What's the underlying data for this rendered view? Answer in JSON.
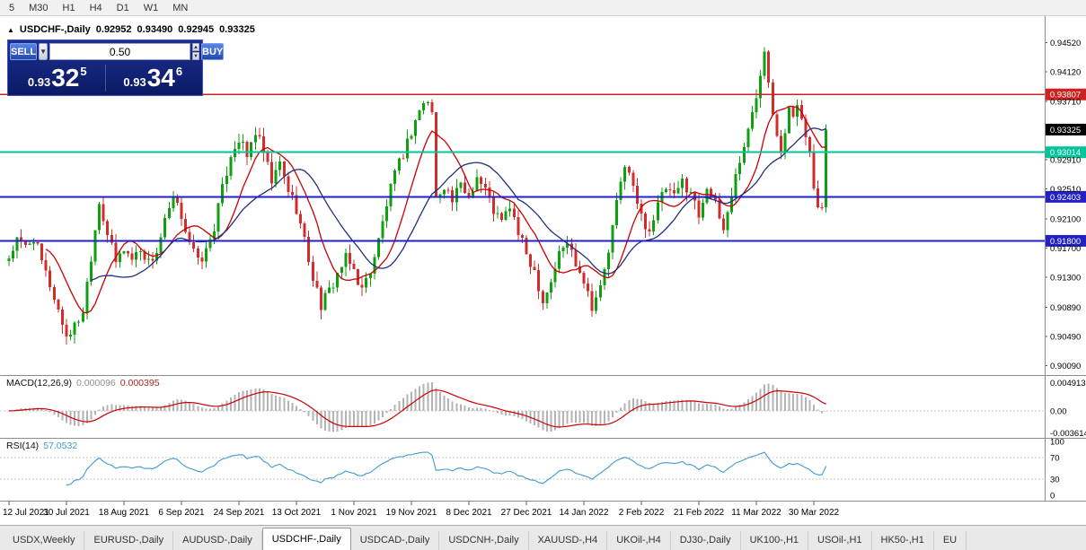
{
  "toolbar": {
    "timeframes": [
      "5",
      "M30",
      "H1",
      "H4",
      "D1",
      "W1",
      "MN"
    ]
  },
  "chart_header": {
    "marker": "▲",
    "title": "USDCHF-,Daily",
    "open": "0.92952",
    "high": "0.93490",
    "low": "0.92945",
    "close": "0.93325"
  },
  "trade_panel": {
    "sell_label": "SELL",
    "buy_label": "BUY",
    "volume": "0.50",
    "sell_price": {
      "prefix": "0.93",
      "big": "32",
      "sup": "5"
    },
    "buy_price": {
      "prefix": "0.93",
      "big": "34",
      "sup": "6"
    }
  },
  "macd_panel": {
    "name": "MACD(12,26,9)",
    "value_main": "0.000096",
    "value_signal": "0.000395",
    "axis_labels": [
      "0.004913",
      "0.00",
      "-0.003614"
    ]
  },
  "rsi_panel": {
    "name": "RSI(14)",
    "value": "57.0532",
    "axis_labels": [
      "100",
      "70",
      "30",
      "0"
    ],
    "levels": [
      70,
      30
    ]
  },
  "tabs": [
    {
      "label": "USDX,Weekly",
      "active": false
    },
    {
      "label": "EURUSD-,Daily",
      "active": false
    },
    {
      "label": "AUDUSD-,Daily",
      "active": false
    },
    {
      "label": "USDCHF-,Daily",
      "active": true
    },
    {
      "label": "USDCAD-,Daily",
      "active": false
    },
    {
      "label": "USDCNH-,Daily",
      "active": false
    },
    {
      "label": "XAUUSD-,H4",
      "active": false
    },
    {
      "label": "UKOil-,H4",
      "active": false
    },
    {
      "label": "DJ30-,Daily",
      "active": false
    },
    {
      "label": "UK100-,H1",
      "active": false
    },
    {
      "label": "USOil-,H1",
      "active": false
    },
    {
      "label": "HK50-,H1",
      "active": false
    },
    {
      "label": "EU",
      "active": false
    }
  ],
  "colors": {
    "bull": "#0fa00f",
    "bear": "#d22d2d",
    "ma_fast": "#cc0000",
    "ma_slow": "#20307f",
    "macd_hist": "#b3b3b3",
    "macd_signal": "#cc0000",
    "rsi_line": "#3f9bd0",
    "hline_red": "#cc2222",
    "hline_teal": "#00c49a",
    "hline_blue": "#2222c4",
    "bid_box": "#000000",
    "axis_text": "#000000",
    "separator": "#8c8c8c"
  },
  "chart_data": {
    "type": "candlestick",
    "symbol": "USDCHF-",
    "timeframe": "Daily",
    "price_range": {
      "top": 0.9488,
      "bottom": 0.8996
    },
    "price_axis_ticks": [
      "0.94520",
      "0.94120",
      "0.93710",
      "0.92910",
      "0.92510",
      "0.92100",
      "0.91700",
      "0.91300",
      "0.90890",
      "0.90490",
      "0.90090"
    ],
    "hlines": [
      {
        "price": 0.93807,
        "label": "0.93807",
        "color_key": "hline_red",
        "width": 1.5
      },
      {
        "price": 0.93014,
        "label": "0.93014",
        "color_key": "hline_teal",
        "width": 2
      },
      {
        "price": 0.92403,
        "label": "0.92403",
        "color_key": "hline_blue",
        "width": 2
      },
      {
        "price": 0.918,
        "label": "0.91800",
        "color_key": "hline_blue",
        "width": 2
      }
    ],
    "bid": {
      "price": 0.93325,
      "label": "0.93325"
    },
    "x_labels": [
      "12 Jul 2021",
      "30 Jul 2021",
      "18 Aug 2021",
      "6 Sep 2021",
      "24 Sep 2021",
      "13 Oct 2021",
      "1 Nov 2021",
      "19 Nov 2021",
      "8 Dec 2021",
      "27 Dec 2021",
      "14 Jan 2022",
      "2 Feb 2022",
      "21 Feb 2022",
      "11 Mar 2022",
      "30 Mar 2022"
    ],
    "candles_per_label": 14,
    "candle_count": 200,
    "close_waypoints": [
      [
        0,
        0.9158
      ],
      [
        2,
        0.918
      ],
      [
        4,
        0.9172
      ],
      [
        6,
        0.9185
      ],
      [
        8,
        0.915
      ],
      [
        10,
        0.912
      ],
      [
        12,
        0.9085
      ],
      [
        14,
        0.905
      ],
      [
        16,
        0.9062
      ],
      [
        18,
        0.9085
      ],
      [
        20,
        0.916
      ],
      [
        22,
        0.9235
      ],
      [
        24,
        0.919
      ],
      [
        26,
        0.915
      ],
      [
        28,
        0.917
      ],
      [
        30,
        0.9155
      ],
      [
        32,
        0.917
      ],
      [
        34,
        0.915
      ],
      [
        36,
        0.9165
      ],
      [
        38,
        0.9205
      ],
      [
        40,
        0.9235
      ],
      [
        42,
        0.9215
      ],
      [
        44,
        0.918
      ],
      [
        46,
        0.915
      ],
      [
        48,
        0.9165
      ],
      [
        50,
        0.92
      ],
      [
        52,
        0.925
      ],
      [
        54,
        0.93
      ],
      [
        56,
        0.932
      ],
      [
        58,
        0.9295
      ],
      [
        60,
        0.933
      ],
      [
        62,
        0.93
      ],
      [
        64,
        0.926
      ],
      [
        66,
        0.9285
      ],
      [
        68,
        0.925
      ],
      [
        70,
        0.9225
      ],
      [
        72,
        0.918
      ],
      [
        74,
        0.913
      ],
      [
        76,
        0.9092
      ],
      [
        78,
        0.911
      ],
      [
        80,
        0.9135
      ],
      [
        82,
        0.9155
      ],
      [
        84,
        0.914
      ],
      [
        86,
        0.9112
      ],
      [
        88,
        0.914
      ],
      [
        90,
        0.918
      ],
      [
        92,
        0.923
      ],
      [
        94,
        0.927
      ],
      [
        96,
        0.93
      ],
      [
        98,
        0.933
      ],
      [
        100,
        0.936
      ],
      [
        102,
        0.9372
      ],
      [
        103,
        0.9355
      ],
      [
        104,
        0.9238
      ],
      [
        106,
        0.9258
      ],
      [
        108,
        0.9235
      ],
      [
        110,
        0.9255
      ],
      [
        112,
        0.9242
      ],
      [
        114,
        0.9268
      ],
      [
        116,
        0.925
      ],
      [
        118,
        0.9222
      ],
      [
        120,
        0.9205
      ],
      [
        122,
        0.9228
      ],
      [
        124,
        0.919
      ],
      [
        126,
        0.9162
      ],
      [
        128,
        0.914
      ],
      [
        130,
        0.9098
      ],
      [
        132,
        0.9125
      ],
      [
        134,
        0.9162
      ],
      [
        136,
        0.9178
      ],
      [
        138,
        0.9152
      ],
      [
        140,
        0.9128
      ],
      [
        142,
        0.9092
      ],
      [
        144,
        0.9115
      ],
      [
        146,
        0.9165
      ],
      [
        148,
        0.923
      ],
      [
        150,
        0.9288
      ],
      [
        152,
        0.9252
      ],
      [
        154,
        0.9212
      ],
      [
        156,
        0.9195
      ],
      [
        158,
        0.9228
      ],
      [
        160,
        0.9252
      ],
      [
        162,
        0.9238
      ],
      [
        164,
        0.9262
      ],
      [
        166,
        0.9248
      ],
      [
        168,
        0.9215
      ],
      [
        170,
        0.9258
      ],
      [
        172,
        0.9228
      ],
      [
        174,
        0.9195
      ],
      [
        176,
        0.9245
      ],
      [
        178,
        0.9292
      ],
      [
        180,
        0.933
      ],
      [
        182,
        0.9378
      ],
      [
        184,
        0.9448
      ],
      [
        185,
        0.94
      ],
      [
        186,
        0.936
      ],
      [
        187,
        0.9332
      ],
      [
        188,
        0.9308
      ],
      [
        189,
        0.9332
      ],
      [
        190,
        0.9362
      ],
      [
        191,
        0.9345
      ],
      [
        192,
        0.9368
      ],
      [
        193,
        0.9352
      ],
      [
        194,
        0.933
      ],
      [
        195,
        0.9295
      ],
      [
        196,
        0.9252
      ],
      [
        197,
        0.9222
      ],
      [
        198,
        0.9218
      ],
      [
        199,
        0.93325
      ]
    ],
    "overlays": [
      {
        "name": "ma-fast",
        "type": "sma",
        "period": 10,
        "color_key": "ma_fast"
      },
      {
        "name": "ma-slow",
        "type": "sma",
        "period": 21,
        "color_key": "ma_slow"
      }
    ],
    "macd": {
      "fast": 12,
      "slow": 26,
      "signal": 9
    },
    "rsi": {
      "period": 14
    }
  }
}
